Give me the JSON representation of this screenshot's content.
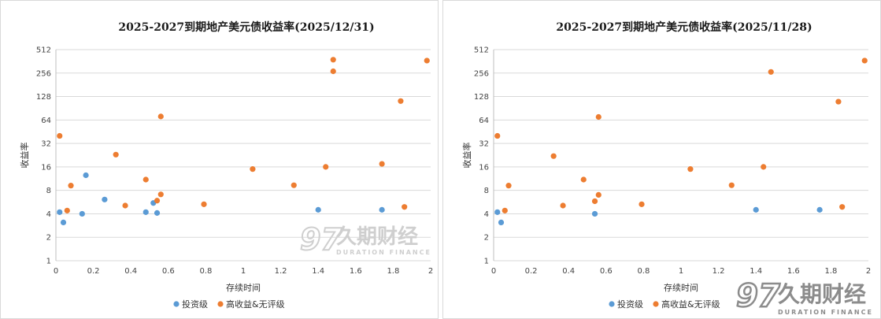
{
  "colors": {
    "investment_grade": "#5b9bd5",
    "high_yield": "#ed7d31",
    "grid": "#d9d9d9"
  },
  "chart_data": [
    {
      "type": "scatter",
      "title": "2025-2027到期地产美元债收益率(2025/12/31)",
      "xlabel": "存续时间",
      "ylabel": "收益率",
      "xlim": [
        0,
        2
      ],
      "x_ticks": [
        "0",
        "0.2",
        "0.4",
        "0.6",
        "0.8",
        "1",
        "1.2",
        "1.4",
        "1.6",
        "1.8",
        "2"
      ],
      "y_scale": "log2",
      "ylim": [
        1,
        512
      ],
      "y_ticks": [
        "1",
        "2",
        "4",
        "8",
        "16",
        "32",
        "64",
        "128",
        "256",
        "512"
      ],
      "legend": [
        "投资级",
        "高收益&无评级"
      ],
      "series": [
        {
          "name": "投资级",
          "points": [
            [
              0.02,
              4.2
            ],
            [
              0.04,
              3.1
            ],
            [
              0.14,
              4.0
            ],
            [
              0.16,
              12.5
            ],
            [
              0.26,
              6.1
            ],
            [
              0.48,
              4.2
            ],
            [
              0.52,
              5.5
            ],
            [
              0.54,
              4.1
            ],
            [
              1.4,
              4.5
            ],
            [
              1.74,
              4.5
            ]
          ]
        },
        {
          "name": "高收益&无评级",
          "points": [
            [
              0.02,
              40
            ],
            [
              0.06,
              4.4
            ],
            [
              0.08,
              9.2
            ],
            [
              0.32,
              23
            ],
            [
              0.37,
              5.1
            ],
            [
              0.48,
              11
            ],
            [
              0.54,
              5.9
            ],
            [
              0.56,
              71
            ],
            [
              0.56,
              7.1
            ],
            [
              0.79,
              5.3
            ],
            [
              1.05,
              15
            ],
            [
              1.27,
              9.3
            ],
            [
              1.44,
              16
            ],
            [
              1.48,
              380
            ],
            [
              1.48,
              270
            ],
            [
              1.74,
              17.5
            ],
            [
              1.84,
              112
            ],
            [
              1.86,
              4.9
            ],
            [
              1.98,
              370
            ]
          ]
        }
      ],
      "watermark": {
        "brand": "久期财经",
        "sub": "DURATION FINANCE"
      }
    },
    {
      "type": "scatter",
      "title": "2025-2027到期地产美元债收益率(2025/11/28)",
      "xlabel": "存续时间",
      "ylabel": "收益率",
      "xlim": [
        0,
        2
      ],
      "x_ticks": [
        "0",
        "0.2",
        "0.4",
        "0.6",
        "0.8",
        "1",
        "1.2",
        "1.4",
        "1.6",
        "1.8",
        "2"
      ],
      "y_scale": "log2",
      "ylim": [
        1,
        512
      ],
      "y_ticks": [
        "1",
        "2",
        "4",
        "8",
        "16",
        "32",
        "64",
        "128",
        "256",
        "512"
      ],
      "legend": [
        "投资级",
        "高收益&无评级"
      ],
      "series": [
        {
          "name": "投资级",
          "points": [
            [
              0.02,
              4.2
            ],
            [
              0.04,
              3.1
            ],
            [
              0.54,
              4.0
            ],
            [
              1.4,
              4.5
            ],
            [
              1.74,
              4.5
            ]
          ]
        },
        {
          "name": "高收益&无评级",
          "points": [
            [
              0.02,
              40
            ],
            [
              0.06,
              4.4
            ],
            [
              0.08,
              9.2
            ],
            [
              0.32,
              22
            ],
            [
              0.37,
              5.1
            ],
            [
              0.48,
              11
            ],
            [
              0.54,
              5.8
            ],
            [
              0.56,
              70
            ],
            [
              0.56,
              7.0
            ],
            [
              0.79,
              5.3
            ],
            [
              1.05,
              15
            ],
            [
              1.27,
              9.3
            ],
            [
              1.44,
              16
            ],
            [
              1.48,
              265
            ],
            [
              1.84,
              110
            ],
            [
              1.86,
              4.9
            ],
            [
              1.98,
              370
            ]
          ]
        }
      ],
      "watermark": {
        "brand": "久期财经",
        "sub": "DURATION FINANCE"
      }
    }
  ]
}
